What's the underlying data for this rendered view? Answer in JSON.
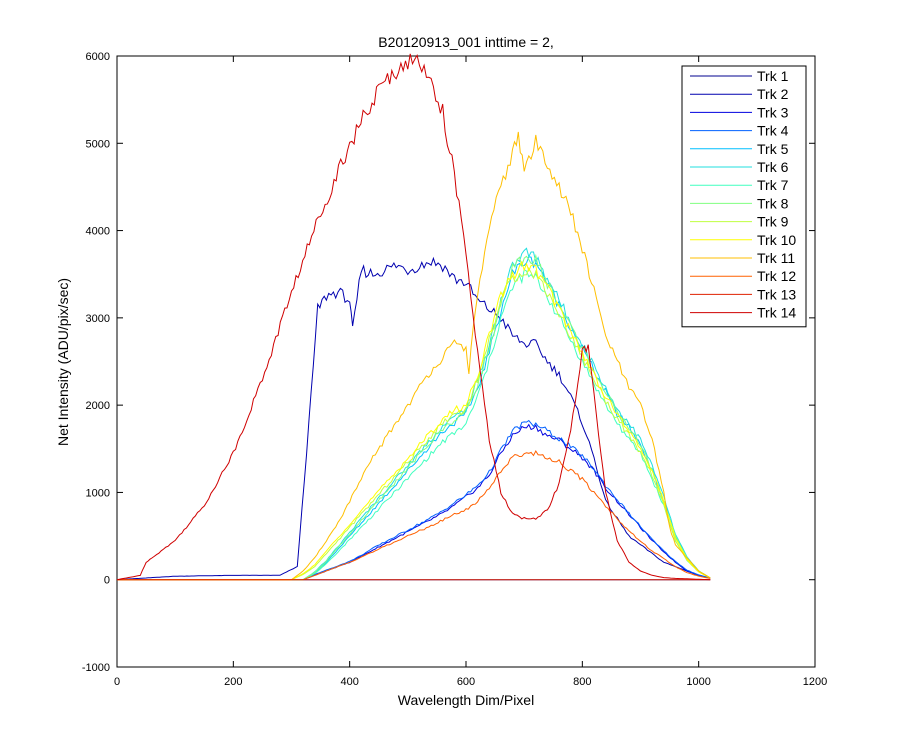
{
  "chart_data": {
    "type": "line",
    "title": "B20120913_001 inttime = 2,",
    "xlabel": "Wavelength Dim/Pixel",
    "ylabel": "Net Intensity (ADU/pix/sec)",
    "xlim": [
      0,
      1200
    ],
    "ylim": [
      -1000,
      6000
    ],
    "xticks": [
      0,
      200,
      400,
      600,
      800,
      1000,
      1200
    ],
    "yticks": [
      -1000,
      0,
      1000,
      2000,
      3000,
      4000,
      5000,
      6000
    ],
    "grid": false,
    "legend_position": "top-right",
    "series": [
      {
        "name": "Trk 1",
        "color": "#00008f",
        "x": [
          0,
          100,
          300,
          320,
          340,
          360,
          380,
          400,
          420,
          440,
          460,
          480,
          500,
          520,
          540,
          560,
          580,
          600,
          620,
          640,
          660,
          680,
          700,
          720,
          740,
          760,
          780,
          800,
          820,
          840,
          860,
          880,
          900,
          920,
          940,
          960,
          980,
          1000,
          1020
        ],
        "y": [
          0,
          0,
          0,
          0,
          0,
          0,
          0,
          0,
          0,
          0,
          0,
          0,
          0,
          0,
          0,
          0,
          0,
          0,
          0,
          0,
          0,
          0,
          0,
          0,
          0,
          0,
          0,
          0,
          0,
          0,
          0,
          0,
          0,
          0,
          0,
          0,
          0,
          0,
          0
        ]
      },
      {
        "name": "Trk 2",
        "color": "#0000af",
        "x": [
          0,
          50,
          100,
          200,
          280,
          310,
          330,
          345,
          360,
          380,
          400,
          405,
          420,
          440,
          460,
          480,
          500,
          520,
          540,
          560,
          580,
          600,
          620,
          640,
          660,
          680,
          700,
          720,
          740,
          760,
          780,
          800,
          820,
          840,
          860,
          880,
          900,
          920,
          940,
          960,
          980,
          1000,
          1020
        ],
        "y": [
          0,
          20,
          40,
          50,
          50,
          150,
          1800,
          3100,
          3250,
          3300,
          3200,
          2850,
          3550,
          3500,
          3550,
          3600,
          3550,
          3600,
          3650,
          3600,
          3450,
          3400,
          3200,
          3100,
          3000,
          2800,
          2700,
          2700,
          2500,
          2350,
          2100,
          1800,
          1400,
          900,
          700,
          500,
          400,
          300,
          200,
          150,
          100,
          50,
          20
        ]
      },
      {
        "name": "Trk 3",
        "color": "#0000df",
        "x": [
          0,
          320,
          340,
          360,
          380,
          400,
          420,
          440,
          460,
          480,
          500,
          520,
          540,
          560,
          580,
          600,
          620,
          640,
          660,
          680,
          700,
          720,
          740,
          760,
          780,
          800,
          820,
          840,
          860,
          880,
          900,
          920,
          940,
          960,
          980,
          1000,
          1020
        ],
        "y": [
          0,
          0,
          50,
          100,
          150,
          200,
          270,
          340,
          410,
          480,
          550,
          620,
          690,
          760,
          850,
          950,
          1050,
          1200,
          1450,
          1650,
          1750,
          1750,
          1650,
          1600,
          1500,
          1400,
          1250,
          1050,
          900,
          750,
          600,
          450,
          320,
          200,
          100,
          50,
          20
        ]
      },
      {
        "name": "Trk 4",
        "color": "#0060ff",
        "x": [
          0,
          320,
          340,
          360,
          380,
          400,
          420,
          440,
          460,
          480,
          500,
          520,
          540,
          560,
          580,
          600,
          620,
          640,
          660,
          680,
          700,
          720,
          740,
          760,
          780,
          800,
          820,
          840,
          860,
          880,
          900,
          920,
          940,
          960,
          980,
          1000,
          1020
        ],
        "y": [
          0,
          0,
          60,
          110,
          160,
          210,
          280,
          360,
          430,
          500,
          570,
          640,
          710,
          790,
          880,
          970,
          1080,
          1230,
          1480,
          1700,
          1800,
          1780,
          1700,
          1620,
          1520,
          1420,
          1270,
          1080,
          920,
          760,
          610,
          460,
          330,
          210,
          110,
          55,
          20
        ]
      },
      {
        "name": "Trk 5",
        "color": "#00bfff",
        "x": [
          0,
          320,
          340,
          360,
          380,
          400,
          420,
          440,
          460,
          480,
          500,
          520,
          540,
          560,
          580,
          600,
          620,
          640,
          660,
          680,
          700,
          720,
          740,
          760,
          780,
          800,
          820,
          840,
          860,
          880,
          900,
          920,
          940,
          960,
          980,
          1000,
          1020
        ],
        "y": [
          0,
          0,
          80,
          200,
          350,
          500,
          650,
          800,
          950,
          1100,
          1250,
          1400,
          1550,
          1700,
          1800,
          1900,
          2200,
          2600,
          3100,
          3500,
          3650,
          3650,
          3400,
          3150,
          2900,
          2650,
          2400,
          2150,
          1900,
          1750,
          1550,
          1250,
          900,
          500,
          250,
          100,
          20
        ]
      },
      {
        "name": "Trk 6",
        "color": "#20dfdf",
        "x": [
          0,
          320,
          340,
          360,
          380,
          400,
          420,
          440,
          460,
          480,
          500,
          520,
          540,
          560,
          580,
          600,
          620,
          640,
          660,
          680,
          700,
          720,
          740,
          760,
          780,
          800,
          820,
          840,
          860,
          880,
          900,
          920,
          940,
          960,
          980,
          1000,
          1020
        ],
        "y": [
          0,
          0,
          90,
          220,
          380,
          540,
          700,
          860,
          1010,
          1160,
          1310,
          1460,
          1610,
          1760,
          1860,
          1960,
          2280,
          2700,
          3200,
          3600,
          3750,
          3700,
          3450,
          3200,
          2950,
          2700,
          2450,
          2200,
          1950,
          1800,
          1600,
          1300,
          950,
          520,
          260,
          100,
          20
        ]
      },
      {
        "name": "Trk 7",
        "color": "#40ffbf",
        "x": [
          0,
          320,
          340,
          360,
          380,
          400,
          420,
          440,
          460,
          480,
          500,
          520,
          540,
          560,
          580,
          600,
          620,
          640,
          660,
          680,
          700,
          720,
          740,
          760,
          780,
          800,
          820,
          840,
          860,
          880,
          900,
          920,
          940,
          960,
          980,
          1000,
          1020
        ],
        "y": [
          0,
          0,
          70,
          180,
          320,
          460,
          600,
          740,
          880,
          1020,
          1160,
          1300,
          1440,
          1580,
          1680,
          1780,
          2100,
          2500,
          3000,
          3350,
          3500,
          3450,
          3250,
          3000,
          2750,
          2500,
          2250,
          2000,
          1800,
          1600,
          1450,
          1150,
          850,
          450,
          220,
          90,
          20
        ]
      },
      {
        "name": "Trk 8",
        "color": "#80ff80",
        "x": [
          0,
          320,
          340,
          360,
          380,
          400,
          420,
          440,
          460,
          480,
          500,
          520,
          540,
          560,
          580,
          600,
          620,
          640,
          660,
          680,
          700,
          720,
          740,
          760,
          780,
          800,
          820,
          840,
          860,
          880,
          900,
          920,
          940,
          960,
          980,
          1000,
          1020
        ],
        "y": [
          0,
          0,
          85,
          210,
          370,
          520,
          680,
          830,
          980,
          1130,
          1280,
          1430,
          1580,
          1730,
          1830,
          1930,
          2250,
          2650,
          3150,
          3550,
          3700,
          3650,
          3400,
          3150,
          2900,
          2650,
          2400,
          2150,
          1900,
          1750,
          1550,
          1250,
          900,
          500,
          250,
          100,
          20
        ]
      },
      {
        "name": "Trk 9",
        "color": "#bfff40",
        "x": [
          0,
          300,
          320,
          340,
          360,
          380,
          400,
          420,
          440,
          460,
          480,
          500,
          520,
          540,
          560,
          580,
          600,
          620,
          640,
          660,
          680,
          700,
          720,
          740,
          760,
          780,
          800,
          820,
          840,
          860,
          880,
          900,
          920,
          940,
          960,
          980,
          1000,
          1020
        ],
        "y": [
          0,
          0,
          60,
          150,
          300,
          450,
          600,
          750,
          900,
          1050,
          1200,
          1350,
          1500,
          1650,
          1800,
          1900,
          1950,
          2300,
          2750,
          3200,
          3450,
          3550,
          3500,
          3300,
          3050,
          2800,
          2550,
          2300,
          2050,
          1850,
          1650,
          1450,
          1200,
          850,
          450,
          220,
          90,
          20
        ]
      },
      {
        "name": "Trk 10",
        "color": "#ffff00",
        "x": [
          0,
          300,
          320,
          340,
          360,
          380,
          400,
          420,
          440,
          460,
          480,
          500,
          520,
          540,
          560,
          580,
          600,
          620,
          640,
          660,
          680,
          700,
          720,
          740,
          760,
          780,
          800,
          820,
          840,
          860,
          880,
          900,
          920,
          940,
          960,
          980,
          1000,
          1020
        ],
        "y": [
          0,
          0,
          70,
          170,
          330,
          480,
          640,
          790,
          940,
          1090,
          1240,
          1390,
          1540,
          1690,
          1840,
          1940,
          2000,
          2350,
          2800,
          3250,
          3500,
          3600,
          3550,
          3350,
          3100,
          2850,
          2600,
          2350,
          2100,
          1900,
          1700,
          1500,
          1250,
          900,
          480,
          230,
          90,
          20
        ]
      },
      {
        "name": "Trk 11",
        "color": "#ffbf00",
        "x": [
          0,
          300,
          320,
          340,
          360,
          380,
          400,
          420,
          440,
          460,
          480,
          500,
          520,
          540,
          560,
          580,
          600,
          605,
          620,
          640,
          660,
          680,
          690,
          700,
          720,
          740,
          760,
          780,
          800,
          820,
          840,
          860,
          880,
          900,
          920,
          940,
          950,
          960,
          980,
          1000,
          1020
        ],
        "y": [
          0,
          0,
          100,
          250,
          450,
          650,
          900,
          1150,
          1400,
          1600,
          1800,
          2000,
          2200,
          2400,
          2550,
          2700,
          2650,
          2400,
          3300,
          4000,
          4500,
          4900,
          5050,
          4700,
          5000,
          4800,
          4500,
          4200,
          3800,
          3300,
          2800,
          2500,
          2200,
          2000,
          1600,
          1000,
          600,
          400,
          250,
          100,
          20
        ]
      },
      {
        "name": "Trk 12",
        "color": "#ff6000",
        "x": [
          0,
          320,
          340,
          360,
          380,
          400,
          420,
          440,
          460,
          480,
          500,
          520,
          540,
          560,
          580,
          600,
          620,
          640,
          660,
          680,
          700,
          720,
          740,
          760,
          780,
          800,
          820,
          840,
          860,
          880,
          900,
          920,
          940,
          960,
          980,
          1000,
          1020
        ],
        "y": [
          0,
          0,
          50,
          100,
          150,
          200,
          260,
          320,
          380,
          440,
          500,
          560,
          620,
          680,
          750,
          800,
          900,
          1050,
          1250,
          1400,
          1450,
          1450,
          1400,
          1350,
          1250,
          1150,
          1000,
          850,
          700,
          560,
          440,
          330,
          240,
          150,
          80,
          40,
          15
        ]
      },
      {
        "name": "Trk 13",
        "color": "#df2000",
        "x": [
          0,
          320,
          340,
          360,
          380,
          400,
          420,
          440,
          460,
          480,
          500,
          520,
          540,
          560,
          580,
          600,
          620,
          640,
          660,
          680,
          700,
          720,
          740,
          760,
          780,
          800,
          820,
          840,
          860,
          880,
          900,
          920,
          940,
          960,
          980,
          1000,
          1020
        ],
        "y": [
          0,
          0,
          0,
          0,
          0,
          0,
          0,
          0,
          0,
          0,
          0,
          0,
          0,
          0,
          0,
          0,
          0,
          0,
          0,
          0,
          0,
          0,
          0,
          0,
          0,
          0,
          0,
          0,
          0,
          0,
          0,
          0,
          0,
          0,
          0,
          0,
          0
        ]
      },
      {
        "name": "Trk 14",
        "color": "#cf0000",
        "x": [
          0,
          40,
          50,
          60,
          100,
          150,
          200,
          250,
          300,
          350,
          400,
          450,
          480,
          500,
          520,
          540,
          560,
          580,
          600,
          620,
          640,
          660,
          680,
          700,
          720,
          740,
          760,
          780,
          800,
          810,
          820,
          840,
          860,
          880,
          900,
          920,
          940,
          960,
          980,
          1000,
          1020
        ],
        "y": [
          0,
          50,
          200,
          250,
          450,
          850,
          1450,
          2300,
          3300,
          4200,
          5000,
          5600,
          5850,
          5950,
          5900,
          5750,
          5350,
          4650,
          3700,
          2600,
          1600,
          1000,
          750,
          700,
          700,
          800,
          1100,
          1700,
          2600,
          2700,
          2100,
          1000,
          450,
          200,
          100,
          50,
          25,
          15,
          10,
          5,
          0
        ]
      }
    ]
  }
}
